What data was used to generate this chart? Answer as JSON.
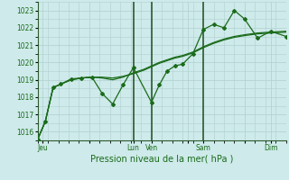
{
  "xlabel": "Pression niveau de la mer( hPa )",
  "bg_color": "#ceeaea",
  "grid_color": "#b0d0d0",
  "line_color": "#1a6b1a",
  "xlim": [
    0,
    96
  ],
  "ylim": [
    1015.5,
    1023.5
  ],
  "yticks": [
    1016,
    1017,
    1018,
    1019,
    1020,
    1021,
    1022,
    1023
  ],
  "xtick_labels": [
    "Jeu",
    "",
    "Lun",
    "Ven",
    "",
    "Sam",
    "",
    "Dim"
  ],
  "xtick_positions": [
    2,
    20,
    37,
    44,
    58,
    64,
    80,
    90
  ],
  "vline_positions": [
    37,
    44,
    64
  ],
  "line1_x": [
    0,
    3,
    6,
    9,
    13,
    17,
    21,
    25,
    29,
    33,
    37,
    41,
    44,
    47,
    50,
    53,
    56,
    60,
    64,
    68,
    72,
    76,
    80,
    85,
    90,
    96
  ],
  "line1_y": [
    1015.55,
    1016.6,
    1018.55,
    1018.75,
    1019.0,
    1019.1,
    1019.15,
    1019.15,
    1019.1,
    1019.2,
    1019.35,
    1019.55,
    1019.75,
    1019.95,
    1020.1,
    1020.25,
    1020.35,
    1020.55,
    1020.85,
    1021.1,
    1021.3,
    1021.45,
    1021.55,
    1021.65,
    1021.7,
    1021.75
  ],
  "line2_x": [
    0,
    3,
    6,
    9,
    13,
    17,
    21,
    25,
    29,
    33,
    37,
    41,
    44,
    47,
    50,
    53,
    56,
    60,
    64,
    68,
    72,
    76,
    80,
    85,
    90,
    96
  ],
  "line2_y": [
    1015.55,
    1016.6,
    1018.55,
    1018.75,
    1019.0,
    1019.1,
    1019.15,
    1019.1,
    1019.0,
    1019.15,
    1019.4,
    1019.6,
    1019.8,
    1020.0,
    1020.15,
    1020.3,
    1020.4,
    1020.6,
    1020.9,
    1021.15,
    1021.35,
    1021.5,
    1021.6,
    1021.7,
    1021.75,
    1021.8
  ],
  "line3_x": [
    0,
    3,
    6,
    9,
    13,
    17,
    21,
    25,
    29,
    33,
    37,
    44,
    47,
    50,
    53,
    56,
    60,
    64,
    68,
    72,
    76,
    80,
    85,
    90,
    96
  ],
  "line3_y": [
    1015.55,
    1016.6,
    1018.55,
    1018.75,
    1019.05,
    1019.1,
    1019.15,
    1018.2,
    1017.6,
    1018.7,
    1019.7,
    1017.7,
    1018.7,
    1019.5,
    1019.8,
    1019.9,
    1020.5,
    1021.9,
    1022.2,
    1022.0,
    1023.0,
    1022.5,
    1021.4,
    1021.8,
    1021.5
  ],
  "marker": "D",
  "marker_size": 2.0,
  "linewidth": 0.9
}
